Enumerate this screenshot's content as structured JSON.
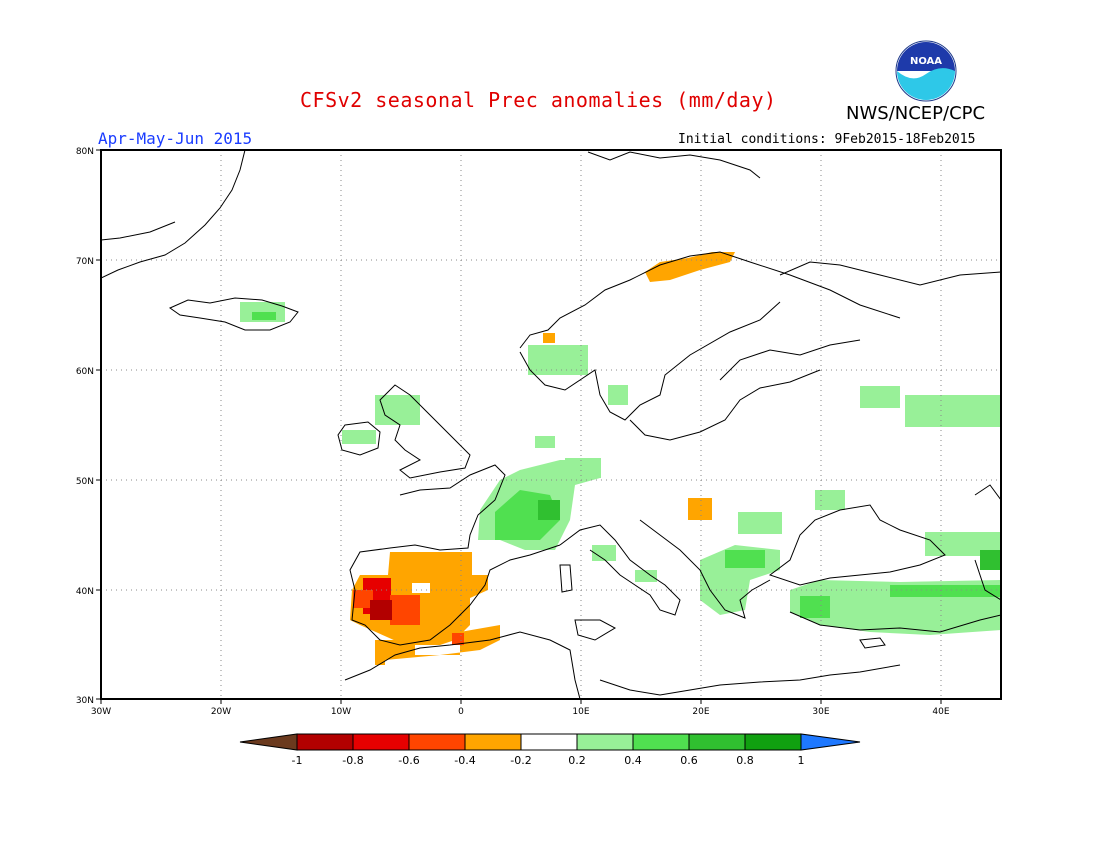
{
  "header": {
    "title": "CFSv2 seasonal Prec anomalies (mm/day)",
    "agency": "NWS/NCEP/CPC",
    "period": "Apr-May-Jun 2015",
    "initial_conditions": "Initial conditions: 9Feb2015-18Feb2015",
    "logo_text": "NOAA"
  },
  "map": {
    "lon_range": [
      -30,
      45
    ],
    "lat_range": [
      30,
      80
    ],
    "lat_labels": [
      "30N",
      "40N",
      "50N",
      "60N",
      "70N",
      "80N"
    ],
    "lon_labels": [
      "30W",
      "20W",
      "10W",
      "0",
      "10E",
      "20E",
      "30E",
      "40E"
    ],
    "gridlines": "dotted",
    "anomaly_cells": [
      {
        "lon": -6,
        "lat": 39,
        "value": -0.7
      },
      {
        "lon": -7,
        "lat": 38.5,
        "value": -0.6
      },
      {
        "lon": -4,
        "lat": 40,
        "value": -0.3
      },
      {
        "lon": -1,
        "lat": 36,
        "value": -0.5
      },
      {
        "lon": 19.5,
        "lat": 47.5,
        "value": -0.3
      },
      {
        "lon": 17,
        "lat": 69.5,
        "value": -0.3
      },
      {
        "lon": -17,
        "lat": 65,
        "value": 0.4
      },
      {
        "lon": -6,
        "lat": 57.5,
        "value": 0.3
      },
      {
        "lon": 5,
        "lat": 47,
        "value": 0.4
      },
      {
        "lon": 22,
        "lat": 41.5,
        "value": 0.4
      },
      {
        "lon": 30,
        "lat": 38.5,
        "value": 0.6
      },
      {
        "lon": 38,
        "lat": 38.5,
        "value": 0.4
      },
      {
        "lon": 44,
        "lat": 43,
        "value": 0.6
      }
    ]
  },
  "colorbar": {
    "labels": [
      "-1",
      "-0.8",
      "-0.6",
      "-0.4",
      "-0.2",
      "0.2",
      "0.4",
      "0.6",
      "0.8",
      "1"
    ],
    "colors": [
      "#6b3a1e",
      "#b20000",
      "#e60000",
      "#ff4500",
      "#ffa500",
      "#ffffff",
      "#98f098",
      "#50e050",
      "#30c030",
      "#10a010",
      "#1e78ff"
    ]
  }
}
